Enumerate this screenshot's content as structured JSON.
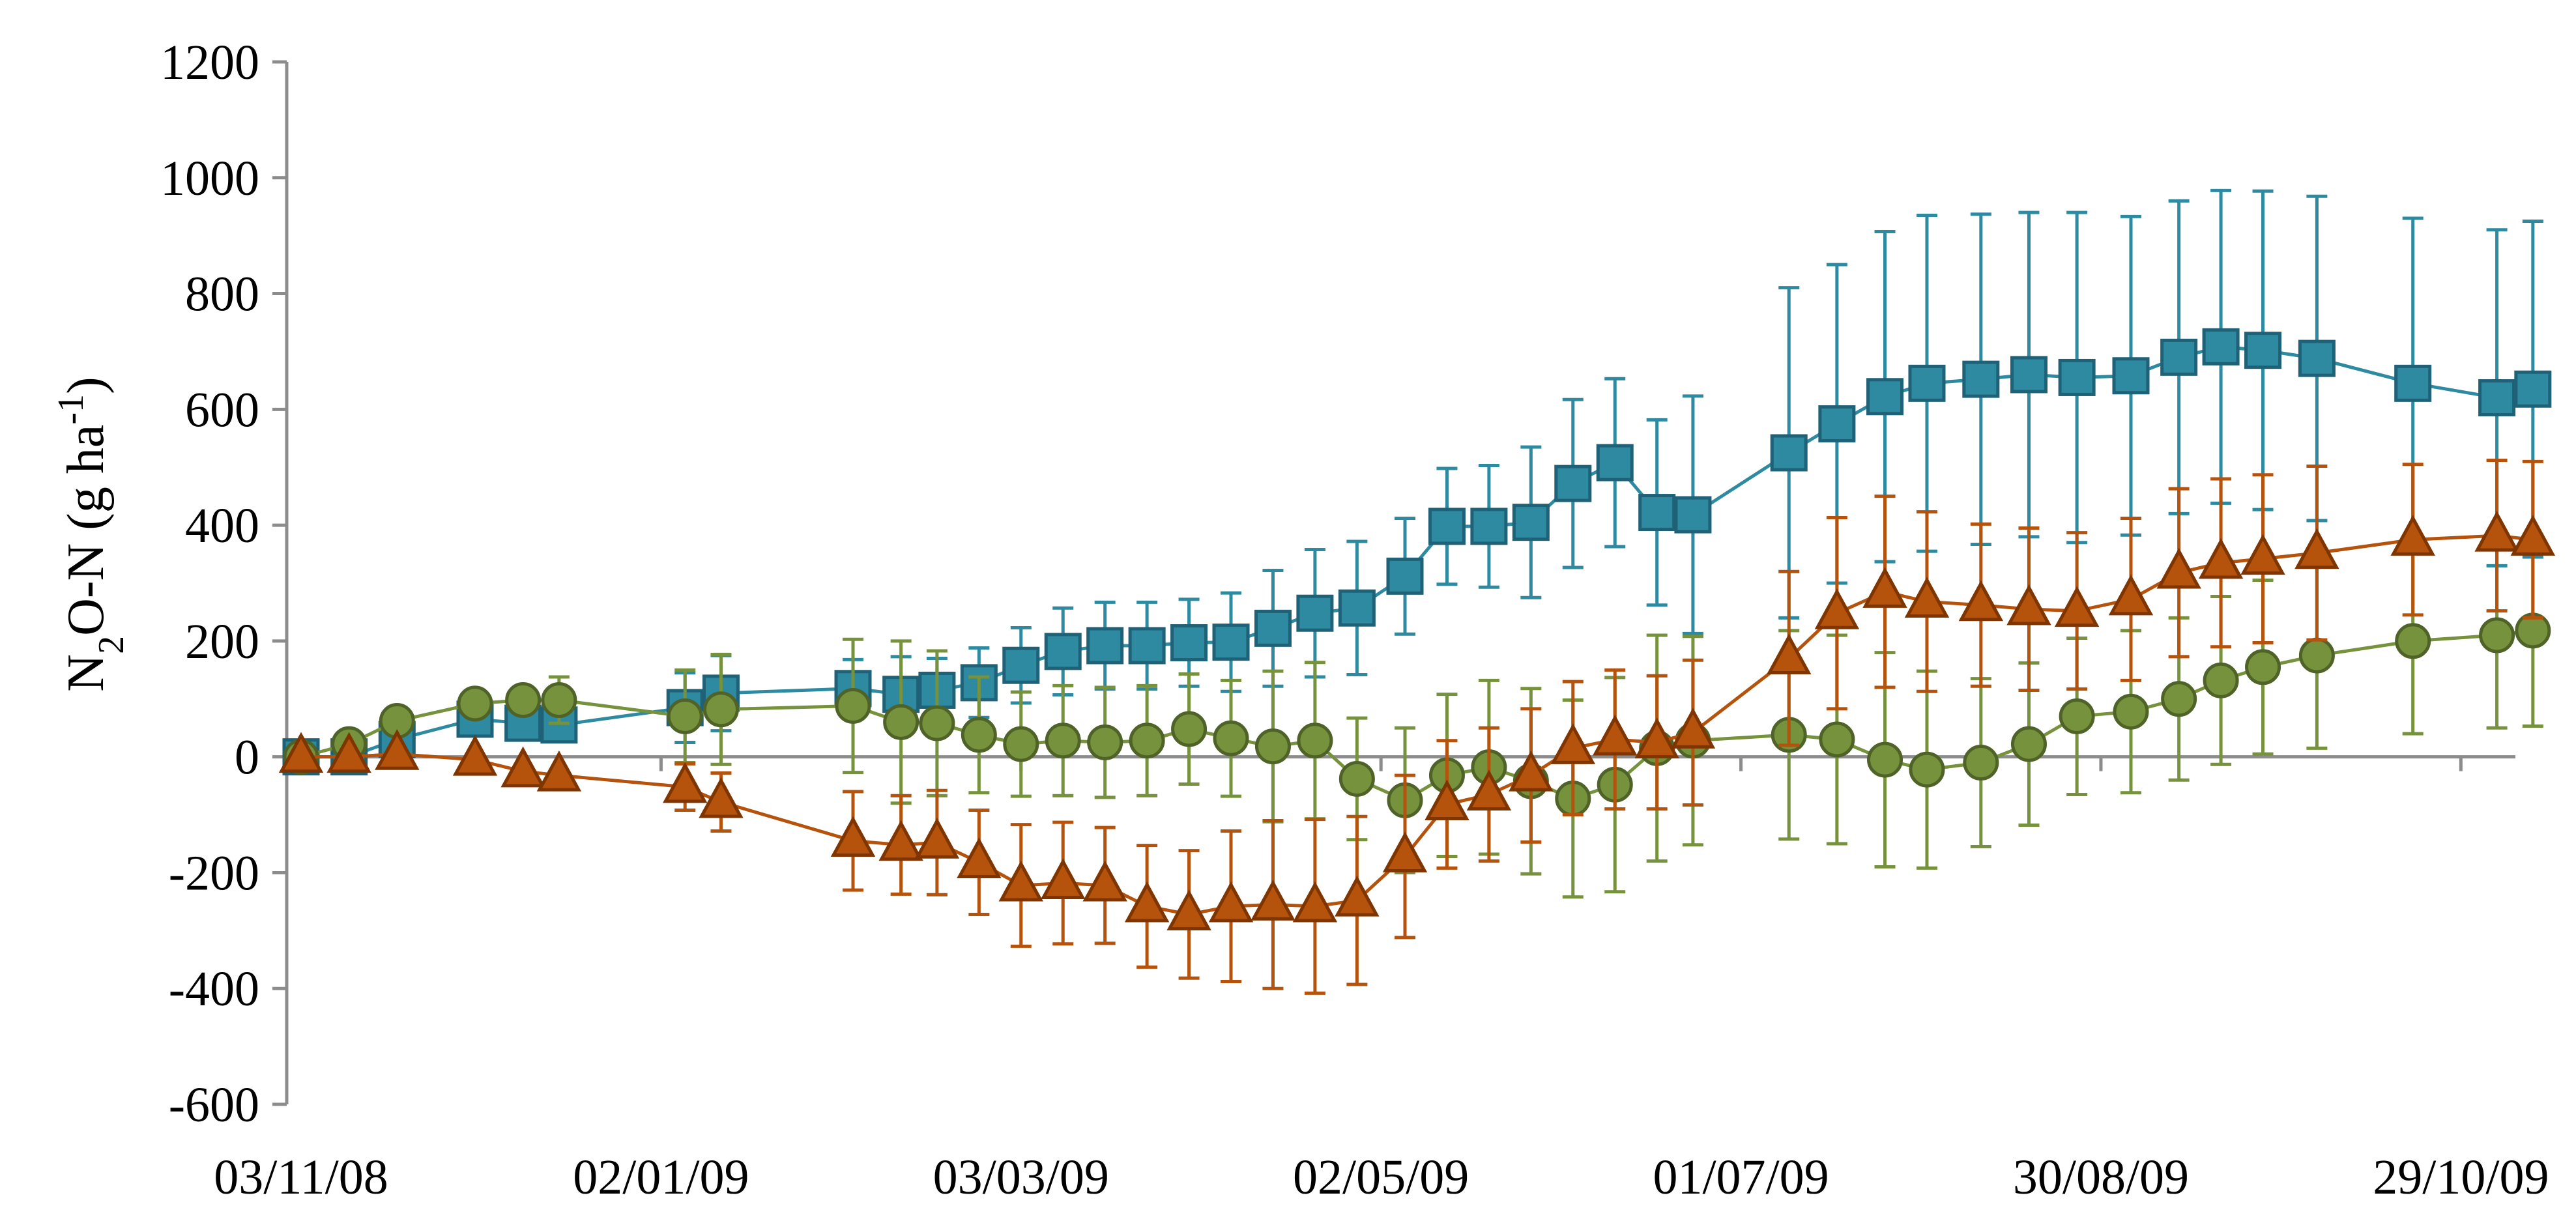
{
  "chart_data": {
    "type": "line",
    "ylabel": {
      "main": "N",
      "sub1": "2",
      "mid": "O-N (g ha",
      "sup": "-1",
      "end": ")"
    },
    "y_ticks": [
      "1200",
      "1000",
      "800",
      "600",
      "400",
      "200",
      "0",
      "-200",
      "-400",
      "-600"
    ],
    "ylim": [
      -600,
      1200
    ],
    "x_tick_labels": [
      "03/11/08",
      "02/01/09",
      "03/03/09",
      "02/05/09",
      "01/07/09",
      "30/08/09",
      "29/10/09"
    ],
    "x_tick_days": [
      0,
      60,
      120,
      180,
      240,
      300,
      360
    ],
    "xlim_days": [
      0,
      368
    ],
    "x_axis_origin_date": "03/11/08",
    "grid": false,
    "legend": "none",
    "series": [
      {
        "marker": "square",
        "color": "#2e8aa0",
        "stroke": "#1f6176",
        "x_days": [
          0,
          8,
          16,
          29,
          37,
          43,
          64,
          70,
          92,
          100,
          106,
          113,
          120,
          127,
          134,
          141,
          148,
          155,
          162,
          169,
          176,
          184,
          191,
          198,
          205,
          212,
          219,
          226,
          232,
          248,
          256,
          264,
          271,
          280,
          288,
          296,
          305,
          313,
          320,
          327,
          336,
          352,
          366,
          372
        ],
        "y": [
          0,
          0,
          30,
          65,
          58,
          55,
          85,
          110,
          118,
          108,
          115,
          128,
          158,
          182,
          192,
          192,
          197,
          198,
          222,
          248,
          257,
          312,
          398,
          398,
          405,
          472,
          508,
          422,
          418,
          525,
          575,
          622,
          645,
          652,
          660,
          655,
          658,
          690,
          708,
          702,
          688,
          645,
          620,
          635
        ],
        "err": [
          0,
          0,
          0,
          25,
          0,
          0,
          60,
          65,
          50,
          65,
          55,
          60,
          65,
          75,
          75,
          75,
          75,
          85,
          100,
          110,
          115,
          100,
          100,
          105,
          130,
          145,
          145,
          160,
          205,
          285,
          275,
          285,
          290,
          285,
          280,
          285,
          275,
          270,
          270,
          275,
          280,
          285,
          290,
          290
        ]
      },
      {
        "marker": "circle",
        "color": "#76923c",
        "stroke": "#4f6228",
        "x_days": [
          0,
          8,
          16,
          29,
          37,
          43,
          64,
          70,
          92,
          100,
          106,
          113,
          120,
          127,
          134,
          141,
          148,
          155,
          162,
          169,
          176,
          184,
          191,
          198,
          205,
          212,
          219,
          226,
          232,
          248,
          256,
          264,
          271,
          280,
          288,
          296,
          305,
          313,
          320,
          327,
          336,
          352,
          366,
          372
        ],
        "y": [
          0,
          22,
          62,
          92,
          98,
          98,
          70,
          82,
          88,
          60,
          58,
          38,
          22,
          28,
          25,
          28,
          48,
          32,
          18,
          28,
          -38,
          -75,
          -32,
          -18,
          -42,
          -72,
          -48,
          15,
          28,
          38,
          30,
          -5,
          -22,
          -10,
          22,
          70,
          78,
          100,
          132,
          155,
          175,
          200,
          210,
          218
        ],
        "err": [
          0,
          0,
          0,
          0,
          0,
          40,
          80,
          95,
          115,
          140,
          125,
          100,
          90,
          95,
          95,
          95,
          95,
          100,
          130,
          135,
          105,
          125,
          140,
          150,
          160,
          170,
          185,
          195,
          180,
          180,
          180,
          185,
          170,
          145,
          140,
          135,
          140,
          140,
          145,
          150,
          160,
          160,
          160,
          165
        ]
      },
      {
        "marker": "triangle",
        "color": "#b5520c",
        "stroke": "#7f3500",
        "x_days": [
          0,
          8,
          16,
          29,
          37,
          43,
          64,
          70,
          92,
          100,
          106,
          113,
          120,
          127,
          134,
          141,
          148,
          155,
          162,
          169,
          176,
          184,
          191,
          198,
          205,
          212,
          219,
          226,
          232,
          248,
          256,
          264,
          271,
          280,
          288,
          296,
          305,
          313,
          320,
          327,
          336,
          352,
          366,
          372
        ],
        "y": [
          0,
          0,
          5,
          -5,
          -25,
          -32,
          -52,
          -78,
          -145,
          -152,
          -148,
          -182,
          -222,
          -218,
          -222,
          -258,
          -272,
          -258,
          -255,
          -258,
          -248,
          -172,
          -82,
          -65,
          -32,
          15,
          30,
          25,
          42,
          170,
          248,
          285,
          268,
          262,
          255,
          252,
          272,
          318,
          335,
          342,
          352,
          375,
          382,
          375
        ],
        "err": [
          0,
          0,
          0,
          0,
          0,
          0,
          40,
          50,
          85,
          85,
          90,
          90,
          105,
          105,
          100,
          105,
          110,
          130,
          145,
          150,
          145,
          140,
          110,
          115,
          115,
          115,
          120,
          115,
          125,
          150,
          165,
          165,
          155,
          140,
          140,
          135,
          140,
          145,
          145,
          145,
          150,
          130,
          130,
          135
        ]
      }
    ]
  }
}
